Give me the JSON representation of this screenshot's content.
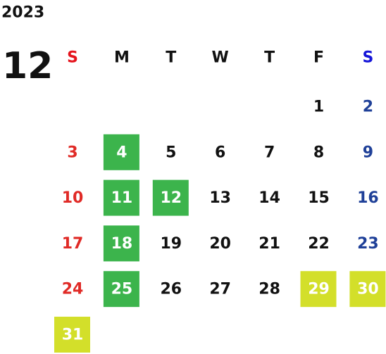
{
  "year": "2023",
  "month": "12",
  "weekdays": [
    "S",
    "M",
    "T",
    "W",
    "T",
    "F",
    "S"
  ],
  "header_colors": [
    "#e5131c",
    "#111111",
    "#111111",
    "#111111",
    "#111111",
    "#111111",
    "#1414d8"
  ],
  "day_colors": [
    "#e02a26",
    "#111111",
    "#111111",
    "#111111",
    "#111111",
    "#111111",
    "#1f4098"
  ],
  "highlight_text_color": "#ffffff",
  "weeks": [
    [
      null,
      null,
      null,
      null,
      null,
      {
        "day": 1
      },
      {
        "day": 2
      }
    ],
    [
      {
        "day": 3
      },
      {
        "day": 4,
        "fill": "#3cb44c"
      },
      {
        "day": 5
      },
      {
        "day": 6
      },
      {
        "day": 7
      },
      {
        "day": 8
      },
      {
        "day": 9
      }
    ],
    [
      {
        "day": 10
      },
      {
        "day": 11,
        "fill": "#3cb44c"
      },
      {
        "day": 12,
        "fill": "#3cb44c"
      },
      {
        "day": 13
      },
      {
        "day": 14
      },
      {
        "day": 15
      },
      {
        "day": 16
      }
    ],
    [
      {
        "day": 17
      },
      {
        "day": 18,
        "fill": "#3cb44c"
      },
      {
        "day": 19
      },
      {
        "day": 20
      },
      {
        "day": 21
      },
      {
        "day": 22
      },
      {
        "day": 23
      }
    ],
    [
      {
        "day": 24
      },
      {
        "day": 25,
        "fill": "#3cb44c"
      },
      {
        "day": 26
      },
      {
        "day": 27
      },
      {
        "day": 28
      },
      {
        "day": 29,
        "fill": "#d3df2a"
      },
      {
        "day": 30,
        "fill": "#d3df2a"
      }
    ],
    [
      {
        "day": 31,
        "fill": "#d3df2a"
      },
      null,
      null,
      null,
      null,
      null,
      null
    ]
  ]
}
